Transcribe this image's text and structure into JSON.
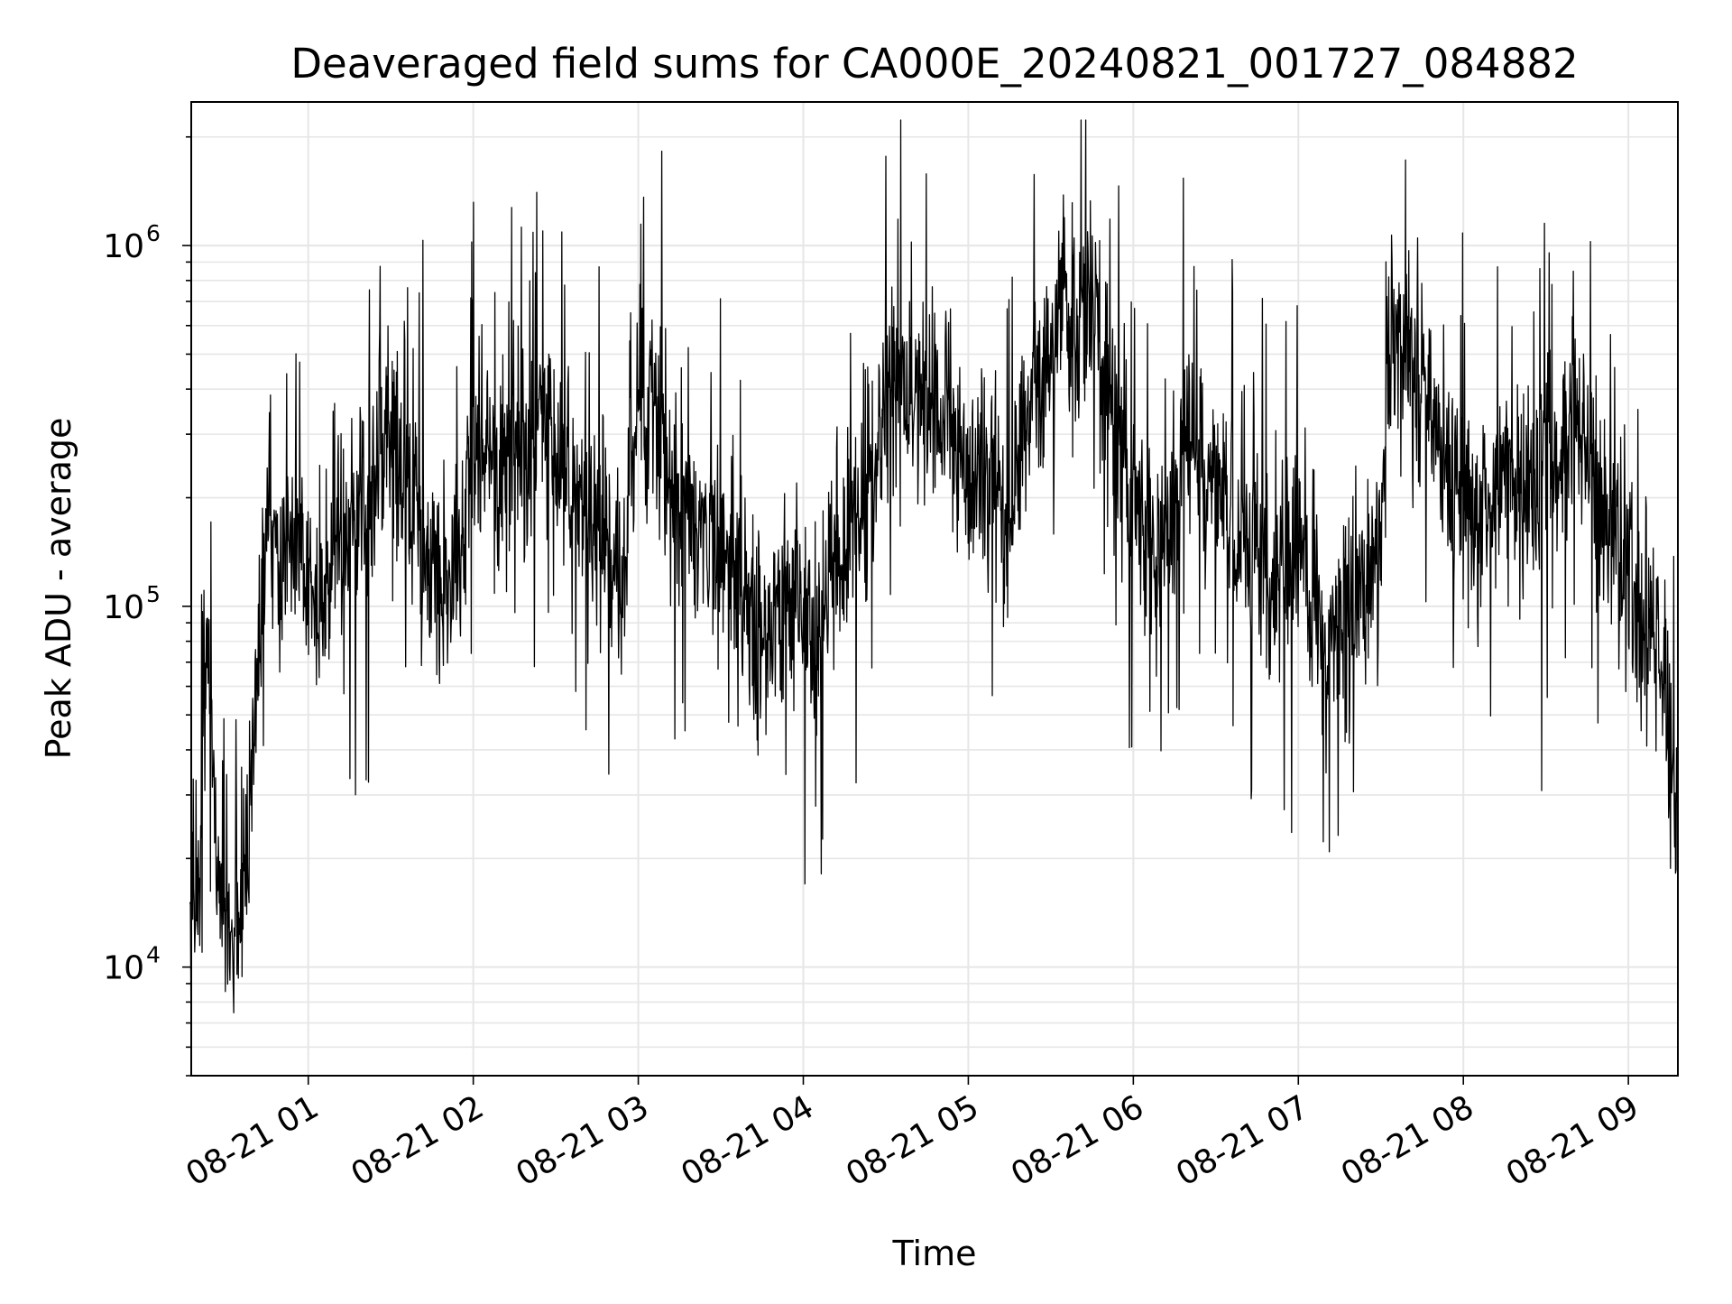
{
  "chart_data": {
    "type": "line",
    "title": "Deaveraged field sums for CA000E_20240821_001727_084882",
    "xlabel": "Time",
    "ylabel": "Peak ADU - average",
    "y_scale": "log",
    "grid": true,
    "line_color": "#000000",
    "grid_color": "#e6e6e6",
    "xlim": [
      "2024-08-21 00:17:27",
      "2024-08-21 09:18:00"
    ],
    "ylim": [
      5000,
      2500000
    ],
    "x_ticks": [
      {
        "value": "2024-08-21 01:00",
        "label": "08-21 01"
      },
      {
        "value": "2024-08-21 02:00",
        "label": "08-21 02"
      },
      {
        "value": "2024-08-21 03:00",
        "label": "08-21 03"
      },
      {
        "value": "2024-08-21 04:00",
        "label": "08-21 04"
      },
      {
        "value": "2024-08-21 05:00",
        "label": "08-21 05"
      },
      {
        "value": "2024-08-21 06:00",
        "label": "08-21 06"
      },
      {
        "value": "2024-08-21 07:00",
        "label": "08-21 07"
      },
      {
        "value": "2024-08-21 08:00",
        "label": "08-21 08"
      },
      {
        "value": "2024-08-21 09:00",
        "label": "08-21 09"
      }
    ],
    "y_ticks": [
      {
        "value": 10000,
        "base": "10",
        "exp": "4"
      },
      {
        "value": 100000,
        "base": "10",
        "exp": "5"
      },
      {
        "value": 1000000,
        "base": "10",
        "exp": "6"
      }
    ],
    "series": [
      {
        "x": [
          "2024-08-21 00:17",
          "2024-08-21 00:20",
          "2024-08-21 00:23",
          "2024-08-21 00:26",
          "2024-08-21 00:29",
          "2024-08-21 00:32",
          "2024-08-21 00:35",
          "2024-08-21 00:38",
          "2024-08-21 00:41",
          "2024-08-21 00:45",
          "2024-08-21 00:50",
          "2024-08-21 00:55",
          "2024-08-21 01:00",
          "2024-08-21 01:05",
          "2024-08-21 01:10",
          "2024-08-21 01:15",
          "2024-08-21 01:20",
          "2024-08-21 01:25",
          "2024-08-21 01:30",
          "2024-08-21 01:35",
          "2024-08-21 01:40",
          "2024-08-21 01:45",
          "2024-08-21 01:50",
          "2024-08-21 01:55",
          "2024-08-21 02:00",
          "2024-08-21 02:05",
          "2024-08-21 02:10",
          "2024-08-21 02:15",
          "2024-08-21 02:20",
          "2024-08-21 02:25",
          "2024-08-21 02:30",
          "2024-08-21 02:35",
          "2024-08-21 02:40",
          "2024-08-21 02:45",
          "2024-08-21 02:50",
          "2024-08-21 02:55",
          "2024-08-21 03:00",
          "2024-08-21 03:05",
          "2024-08-21 03:10",
          "2024-08-21 03:15",
          "2024-08-21 03:20",
          "2024-08-21 03:25",
          "2024-08-21 03:30",
          "2024-08-21 03:35",
          "2024-08-21 03:40",
          "2024-08-21 03:45",
          "2024-08-21 03:50",
          "2024-08-21 03:55",
          "2024-08-21 04:00",
          "2024-08-21 04:05",
          "2024-08-21 04:10",
          "2024-08-21 04:15",
          "2024-08-21 04:20",
          "2024-08-21 04:25",
          "2024-08-21 04:30",
          "2024-08-21 04:35",
          "2024-08-21 04:40",
          "2024-08-21 04:45",
          "2024-08-21 04:50",
          "2024-08-21 04:55",
          "2024-08-21 05:00",
          "2024-08-21 05:05",
          "2024-08-21 05:10",
          "2024-08-21 05:15",
          "2024-08-21 05:20",
          "2024-08-21 05:25",
          "2024-08-21 05:30",
          "2024-08-21 05:35",
          "2024-08-21 05:40",
          "2024-08-21 05:45",
          "2024-08-21 05:50",
          "2024-08-21 05:55",
          "2024-08-21 06:00",
          "2024-08-21 06:05",
          "2024-08-21 06:10",
          "2024-08-21 06:15",
          "2024-08-21 06:20",
          "2024-08-21 06:25",
          "2024-08-21 06:30",
          "2024-08-21 06:35",
          "2024-08-21 06:40",
          "2024-08-21 06:45",
          "2024-08-21 06:50",
          "2024-08-21 06:55",
          "2024-08-21 07:00",
          "2024-08-21 07:05",
          "2024-08-21 07:10",
          "2024-08-21 07:15",
          "2024-08-21 07:20",
          "2024-08-21 07:25",
          "2024-08-21 07:30",
          "2024-08-21 07:35",
          "2024-08-21 07:40",
          "2024-08-21 07:45",
          "2024-08-21 07:50",
          "2024-08-21 07:55",
          "2024-08-21 08:00",
          "2024-08-21 08:05",
          "2024-08-21 08:10",
          "2024-08-21 08:15",
          "2024-08-21 08:20",
          "2024-08-21 08:25",
          "2024-08-21 08:30",
          "2024-08-21 08:35",
          "2024-08-21 08:40",
          "2024-08-21 08:45",
          "2024-08-21 08:50",
          "2024-08-21 08:55",
          "2024-08-21 09:00",
          "2024-08-21 09:05",
          "2024-08-21 09:10",
          "2024-08-21 09:15",
          "2024-08-21 09:18"
        ],
        "y": [
          13000,
          15000,
          90000,
          25000,
          14000,
          12000,
          15000,
          25000,
          50000,
          200000,
          140000,
          160000,
          110000,
          90000,
          140000,
          150000,
          180000,
          230000,
          300000,
          240000,
          150000,
          130000,
          110000,
          150000,
          280000,
          300000,
          240000,
          270000,
          260000,
          340000,
          300000,
          190000,
          170000,
          160000,
          150000,
          130000,
          420000,
          380000,
          300000,
          180000,
          160000,
          160000,
          150000,
          110000,
          100000,
          85000,
          95000,
          110000,
          95000,
          80000,
          130000,
          140000,
          180000,
          210000,
          400000,
          450000,
          380000,
          400000,
          330000,
          280000,
          240000,
          230000,
          260000,
          140000,
          300000,
          420000,
          550000,
          700000,
          600000,
          750000,
          450000,
          280000,
          180000,
          160000,
          150000,
          190000,
          300000,
          260000,
          230000,
          200000,
          150000,
          140000,
          120000,
          110000,
          140000,
          100000,
          80000,
          90000,
          95000,
          110000,
          150000,
          650000,
          520000,
          380000,
          300000,
          240000,
          200000,
          170000,
          220000,
          250000,
          190000,
          210000,
          260000,
          220000,
          400000,
          250000,
          180000,
          150000,
          120000,
          100000,
          80000,
          40000,
          25000
        ]
      }
    ]
  }
}
